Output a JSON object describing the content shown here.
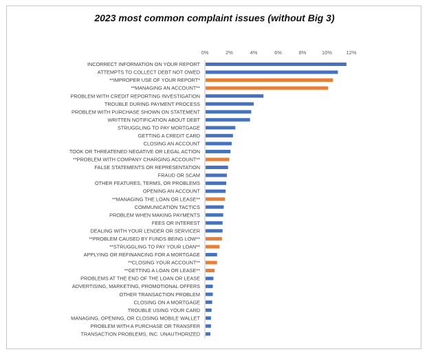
{
  "chart_data": {
    "type": "bar",
    "orientation": "horizontal",
    "title": "2023 most common complaint issues (without Big 3)",
    "xlabel": "",
    "ylabel": "",
    "xlim": [
      0,
      12
    ],
    "ticks": [
      "0%",
      "2%",
      "4%",
      "6%",
      "8%",
      "10%",
      "12%"
    ],
    "tick_values": [
      0,
      2,
      4,
      6,
      8,
      10,
      12
    ],
    "grid": false,
    "colors": {
      "default": "#4472c4",
      "highlight": "#ed7d31"
    },
    "categories": [
      "INCORRECT INFORMATION ON YOUR REPORT",
      "ATTEMPTS TO COLLECT DEBT NOT OWED",
      "**IMPROPER USE OF YOUR REPORT*",
      "**MANAGING AN ACCOUNT**",
      "PROBLEM WITH CREDIT REPORTING INVESTIGATION",
      "TROUBLE DURING PAYMENT PROCESS",
      "PROBLEM WITH PURCHASE SHOWN ON  STATEMENT",
      "WRITTEN NOTIFICATION ABOUT DEBT",
      "STRUGGLING TO PAY MORTGAGE",
      "GETTING A CREDIT CARD",
      "CLOSING AN ACCOUNT",
      "TOOK OR THREATENED NEGATIVE OR LEGAL ACTION",
      "**PROBLEM WITH COMPANY CHARGING ACCOUNT**",
      "FALSE STATEMENTS OR REPRESENTATION",
      "FRAUD OR SCAM",
      "OTHER FEATURES, TERMS, OR PROBLEMS",
      "OPENING AN ACCOUNT",
      "**MANAGING THE LOAN OR LEASE**",
      "COMMUNICATION TACTICS",
      "PROBLEM WHEN MAKING PAYMENTS",
      "FEES OR INTEREST",
      "DEALING WITH YOUR LENDER OR SERVICER",
      "**PROBLEM CAUSED BY FUNDS BEING LOW**",
      "**STRUGGLING TO PAY YOUR LOAN**",
      "APPLYING OR REFINANCING FOR A MORTGAGE",
      "**CLOSING YOUR ACCOUNT**",
      "**GETTING A LOAN OR LEASE**",
      "PROBLEMS AT THE END OF THE LOAN OR LEASE",
      "ADVERTISING, MARKETING, PROMOTIONAL OFFERS",
      "OTHER TRANSACTION PROBLEM",
      "CLOSING ON A MORTGAGE",
      "TROUBLE USING YOUR CARD",
      "MANAGING, OPENING, OR CLOSING MOBILE WALLET",
      "PROBLEM WITH A PURCHASE OR TRANSFER",
      "TRANSACTION PROBLEMS, INC. UNAUTHORIZED"
    ],
    "values": [
      11.6,
      10.9,
      10.5,
      10.1,
      4.8,
      4.0,
      3.8,
      3.7,
      2.5,
      2.3,
      2.2,
      2.1,
      2.0,
      1.9,
      1.8,
      1.75,
      1.7,
      1.65,
      1.55,
      1.5,
      1.45,
      1.45,
      1.4,
      1.2,
      1.0,
      1.0,
      0.8,
      0.7,
      0.65,
      0.65,
      0.6,
      0.55,
      0.5,
      0.5,
      0.45
    ],
    "highlighted": [
      false,
      false,
      true,
      true,
      false,
      false,
      false,
      false,
      false,
      false,
      false,
      false,
      true,
      false,
      false,
      false,
      false,
      true,
      false,
      false,
      false,
      false,
      true,
      true,
      false,
      true,
      true,
      false,
      false,
      false,
      false,
      false,
      false,
      false,
      false
    ]
  }
}
